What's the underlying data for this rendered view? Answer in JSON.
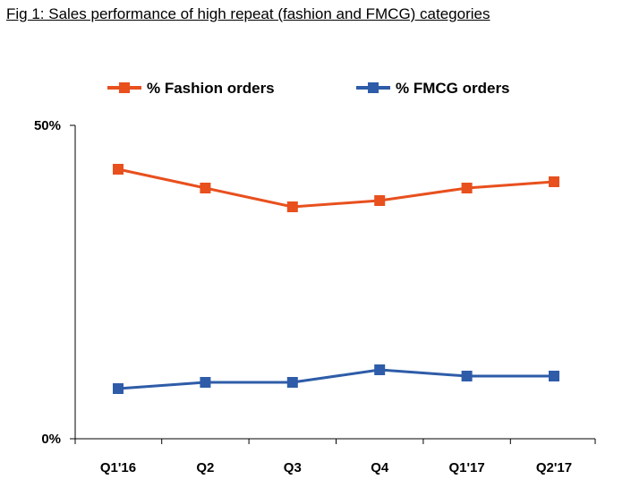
{
  "figure": {
    "title": "Fig 1: Sales performance of high repeat (fashion and FMCG) categories"
  },
  "chart_data": {
    "type": "line",
    "categories": [
      "Q1'16",
      "Q2",
      "Q3",
      "Q4",
      "Q1'17",
      "Q2'17"
    ],
    "series": [
      {
        "name": "% Fashion orders",
        "values": [
          43,
          40,
          37,
          38,
          40,
          41
        ],
        "color": "#E8501E"
      },
      {
        "name": "% FMCG orders",
        "values": [
          8,
          9,
          9,
          11,
          10,
          10
        ],
        "color": "#2E5CA8"
      }
    ],
    "ylim": [
      0,
      50
    ],
    "yticks": [
      {
        "value": 0,
        "label": "0%"
      },
      {
        "value": 50,
        "label": "50%"
      }
    ],
    "legend_position": "top",
    "grid": false
  }
}
